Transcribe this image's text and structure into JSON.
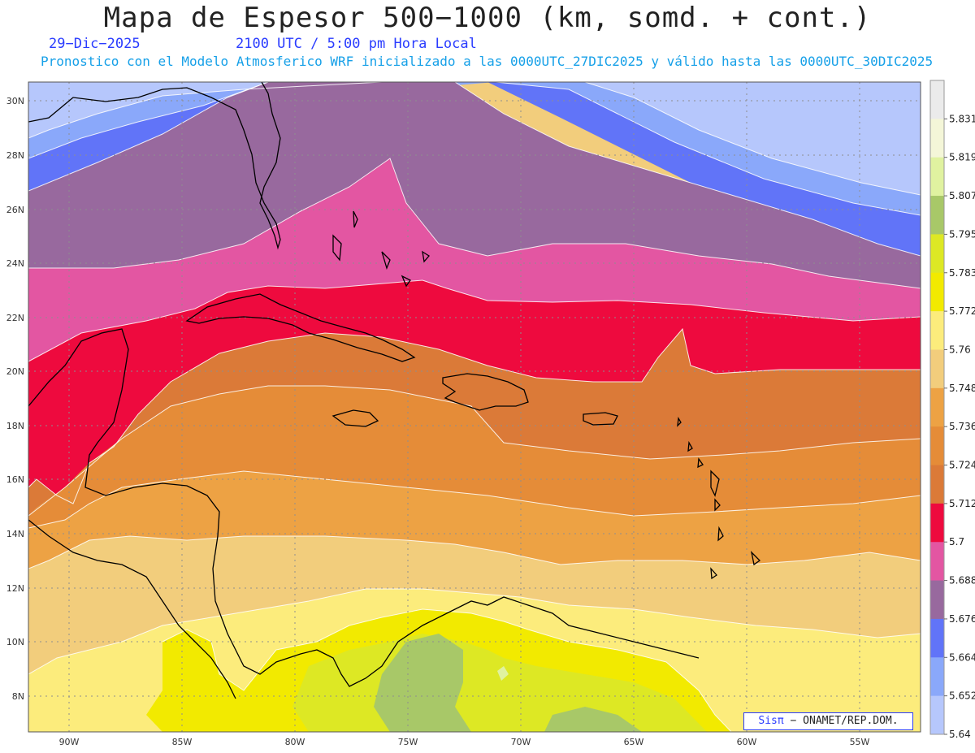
{
  "header": {
    "title": "Mapa de Espesor 500−1000 (km, somd. + cont.)",
    "date": "29−Dic−2025",
    "time": "2100 UTC / 5:00 pm Hora Local",
    "description": "Pronostico con el Modelo Atmosferico WRF inicializado a las 0000UTC_27DIC2025 y válido hasta las  0000UTC_30DIC2025"
  },
  "axes": {
    "lat_labels": [
      "30N",
      "28N",
      "26N",
      "24N",
      "22N",
      "20N",
      "18N",
      "16N",
      "14N",
      "12N",
      "10N",
      "8N"
    ],
    "lon_labels": [
      "90W",
      "85W",
      "80W",
      "75W",
      "70W",
      "65W",
      "60W",
      "55W"
    ]
  },
  "colorbar": {
    "labels": [
      "5.831",
      "5.819",
      "5.807",
      "5.795",
      "5.783",
      "5.772",
      "5.76",
      "5.748",
      "5.736",
      "5.724",
      "5.712",
      "5.7",
      "5.688",
      "5.676",
      "5.664",
      "5.652",
      "5.64"
    ],
    "colors": [
      "#ebebeb",
      "#f4f6d8",
      "#e0f2a0",
      "#a8c868",
      "#dde824",
      "#f2ea00",
      "#fcec7c",
      "#f2cd7c",
      "#eda244",
      "#e58c38",
      "#db7a38",
      "#ee0a3e",
      "#e356a2",
      "#98699e",
      "#6174f8",
      "#8aa8fa",
      "#b6c7fc"
    ]
  },
  "credit": {
    "brand": "Sis",
    "symbol": "π",
    "text": "− ONAMET/REP.DOM."
  }
}
